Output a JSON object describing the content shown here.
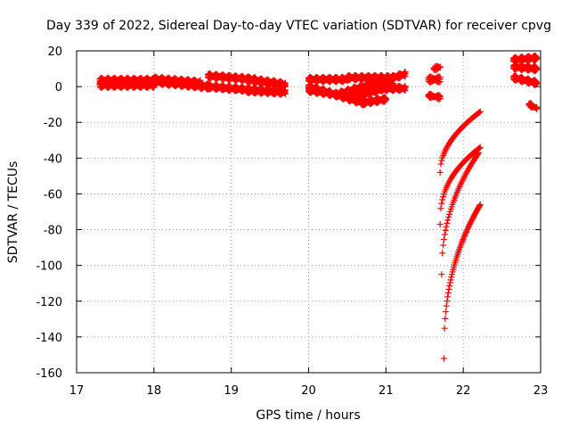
{
  "chart_data": {
    "type": "scatter",
    "title": "Day 339 of 2022, Sidereal Day-to-day VTEC variation (SDTVAR) for receiver cpvg",
    "xlabel": "GPS time / hours",
    "ylabel": "SDTVAR / TECUs",
    "xlim": [
      17,
      23
    ],
    "ylim": [
      -160,
      20
    ],
    "xticks": [
      "17",
      "18",
      "19",
      "20",
      "21",
      "22",
      "23"
    ],
    "yticks": [
      "20",
      "0",
      "-20",
      "-40",
      "-60",
      "-80",
      "-100",
      "-120",
      "-140",
      "-160"
    ],
    "grid": true,
    "marker": "+",
    "series_color": "#ff0000",
    "segments": [
      {
        "x0": 17.3,
        "x1": 18.0,
        "y0": 3,
        "y1": 3,
        "spread": 2.5,
        "step": 0.012
      },
      {
        "x0": 17.3,
        "x1": 18.0,
        "y0": 1,
        "y1": 1,
        "spread": 2,
        "step": 0.012
      },
      {
        "x0": 18.0,
        "x1": 18.6,
        "y0": 4,
        "y1": 2,
        "spread": 2,
        "step": 0.012
      },
      {
        "x0": 18.0,
        "x1": 18.7,
        "y0": 3,
        "y1": 0,
        "spread": 2,
        "step": 0.012
      },
      {
        "x0": 18.7,
        "x1": 19.3,
        "y0": 6,
        "y1": 4,
        "spread": 1.5,
        "step": 0.012
      },
      {
        "x0": 18.7,
        "x1": 19.3,
        "y0": 0,
        "y1": -2,
        "spread": 1.5,
        "step": 0.012
      },
      {
        "x0": 19.2,
        "x1": 19.7,
        "y0": 4,
        "y1": 1,
        "spread": 2,
        "step": 0.012
      },
      {
        "x0": 19.2,
        "x1": 19.7,
        "y0": -2,
        "y1": -3,
        "spread": 2,
        "step": 0.012
      },
      {
        "x0": 20.0,
        "x1": 20.5,
        "y0": 4,
        "y1": 4,
        "spread": 1.5,
        "step": 0.012
      },
      {
        "x0": 20.5,
        "x1": 21.1,
        "y0": 5,
        "y1": 5,
        "spread": 1.5,
        "step": 0.012
      },
      {
        "x0": 20.0,
        "x1": 20.6,
        "y0": -2,
        "y1": -6,
        "spread": 1.5,
        "step": 0.012
      },
      {
        "x0": 20.6,
        "x1": 21.1,
        "y0": -6,
        "y1": 1,
        "spread": 1.5,
        "step": 0.012
      },
      {
        "x0": 20.0,
        "x1": 20.7,
        "y0": 0,
        "y1": -9,
        "spread": 1.5,
        "step": 0.012
      },
      {
        "x0": 20.7,
        "x1": 21.0,
        "y0": -9,
        "y1": -7,
        "spread": 1.5,
        "step": 0.012
      },
      {
        "x0": 20.4,
        "x1": 21.25,
        "y0": -4,
        "y1": 7,
        "spread": 1.5,
        "step": 0.012
      },
      {
        "x0": 20.9,
        "x1": 21.25,
        "y0": -1,
        "y1": -1,
        "spread": 1.5,
        "step": 0.012
      },
      {
        "x0": 21.55,
        "x1": 21.7,
        "y0": 4,
        "y1": 4,
        "spread": 2,
        "step": 0.015
      },
      {
        "x0": 21.55,
        "x1": 21.7,
        "y0": -5,
        "y1": -6,
        "spread": 1,
        "step": 0.015
      },
      {
        "x0": 21.62,
        "x1": 21.7,
        "y0": 10,
        "y1": 11,
        "spread": 1,
        "step": 0.015
      },
      {
        "x0": 22.65,
        "x1": 22.95,
        "y0": 15,
        "y1": 16,
        "spread": 1.5,
        "step": 0.012
      },
      {
        "x0": 22.65,
        "x1": 22.95,
        "y0": 11,
        "y1": 10,
        "spread": 1.5,
        "step": 0.012
      },
      {
        "x0": 22.65,
        "x1": 22.95,
        "y0": 5,
        "y1": 2,
        "spread": 1.5,
        "step": 0.012
      },
      {
        "x0": 22.85,
        "x1": 22.95,
        "y0": -10,
        "y1": -12,
        "spread": 1,
        "step": 0.015
      }
    ],
    "curves": [
      {
        "x0": 21.7,
        "x1": 22.22,
        "y0": -48,
        "y1": -14,
        "pow": 0.5,
        "step": 0.01
      },
      {
        "x0": 21.7,
        "x1": 22.22,
        "y0": -77,
        "y1": -34,
        "pow": 0.4,
        "step": 0.01
      },
      {
        "x0": 21.72,
        "x1": 22.2,
        "y0": -105,
        "y1": -37,
        "pow": 0.45,
        "step": 0.01
      },
      {
        "x0": 21.75,
        "x1": 22.22,
        "y0": -152,
        "y1": -66,
        "pow": 0.4,
        "step": 0.008
      }
    ]
  }
}
